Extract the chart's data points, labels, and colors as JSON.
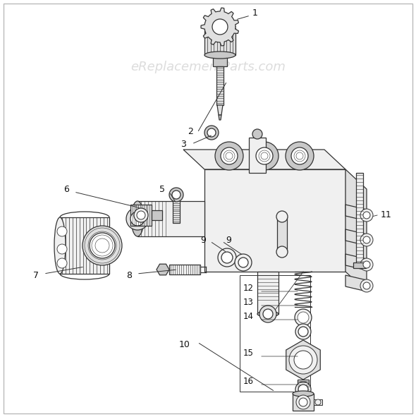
{
  "background_color": "#ffffff",
  "border_color": "#bbbbbb",
  "watermark_text": "eReplacementParts.com",
  "watermark_color": "#bbbbbb",
  "watermark_alpha": 0.5,
  "watermark_fontsize": 13,
  "figsize": [
    5.9,
    5.91
  ],
  "dpi": 100,
  "line_color": "#333333",
  "line_width": 0.9,
  "fill_light": "#f0f0f0",
  "fill_mid": "#e0e0e0",
  "fill_dark": "#c8c8c8"
}
